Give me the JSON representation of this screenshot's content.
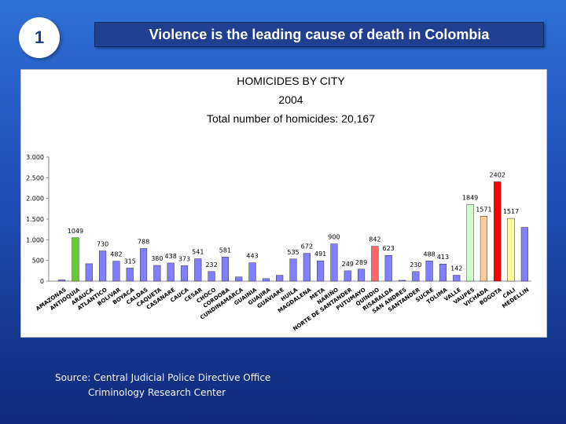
{
  "slide": {
    "number": "1",
    "headline": "Violence is the leading cause of death in Colombia"
  },
  "source": {
    "line1": "Source: Central Judicial Police Directive Office",
    "line2": "Criminology Research Center"
  },
  "colors": {
    "panel_bg": "#ffffff",
    "default_bar": "#8080ff",
    "antioquia_bar": "#33cc33",
    "bogota_bar": "#ff0000"
  },
  "chart_data": {
    "type": "bar",
    "title_lines": [
      "HOMICIDES BY CITY",
      "2004",
      "Total number of homicides: 20,167"
    ],
    "ylim": [
      0,
      3000
    ],
    "yticks": [
      0,
      500,
      1000,
      1500,
      2000,
      2500,
      3000
    ],
    "ytick_labels": [
      "0",
      "500",
      "1.000",
      "1.500",
      "2.000",
      "2.500",
      "3.000"
    ],
    "grid": false,
    "categories": [
      "AMAZONAS",
      "ANTIOQUIA",
      "ARAUCA",
      "ATLANTICO",
      "BOLIVAR",
      "BOYACA",
      "CALDAS",
      "CAQUETA",
      "CASANARE",
      "CAUCA",
      "CESAR",
      "CHOCO",
      "CORDOBA",
      "CUNDINAMARCA",
      "GUAINIA",
      "GUAJIRA",
      "GUAVIARE",
      "HUILA",
      "MAGDALENA",
      "META",
      "NARIÑO",
      "NORTE DE SANTANDER",
      "PUTUMAYO",
      "QUINDIO",
      "RISARALDA",
      "SAN ANDRES",
      "SANTANDER",
      "SUCRE",
      "TOLIMA",
      "VALLE",
      "VAUPES",
      "VICHADA",
      "BOGOTA",
      "CALI",
      "MEDELLIN"
    ],
    "categories_visible": [
      "AMAZONAS",
      "ANTIOQUIA",
      "ARAUCA",
      "ATLANTICO",
      "BOLIVAR",
      "BOYACA",
      "CALDAS",
      "CAQUETA",
      "CASANARE",
      "CAUCA",
      "CESAR",
      "CHOCO",
      "CORDOBA",
      "CUNDINAMARCA",
      "GUAINIA",
      "GUAJIRA",
      "GUAVIARE",
      "HUILA",
      "MAGDALENA",
      "META",
      "NARIÑO",
      "NORTE DE SANTANDER",
      "PUTUMAYO",
      "QUINDIO",
      "RISARALDA",
      "SAN ANDRES",
      "SANTANDER",
      "SUCRE",
      "TOLIMA",
      "VALLE",
      "VAUPES",
      "VICHADA",
      "BOGOTA",
      "CALI",
      "MEDELLIN"
    ],
    "values": [
      30,
      1049,
      420,
      730,
      482,
      315,
      788,
      380,
      438,
      373,
      541,
      232,
      581,
      100,
      443,
      60,
      140,
      535,
      672,
      491,
      900,
      249,
      289,
      842,
      623,
      20,
      230,
      488,
      413,
      142,
      1849,
      1571,
      2402,
      1517,
      1300
    ],
    "labels": [
      "",
      "1049",
      "",
      "730",
      "482",
      "315",
      "788",
      "380",
      "438",
      "373",
      "541",
      "232",
      "581",
      "",
      "443",
      "",
      "",
      "535",
      "672",
      "491",
      "900",
      "249",
      "289",
      "842",
      "623",
      "",
      "230",
      "488",
      "413",
      "142",
      "1849",
      "1571",
      "2402",
      "1517",
      ""
    ],
    "bar_colors": [
      "#8080ff",
      "#66cc33",
      "#8080ff",
      "#8080ff",
      "#8080ff",
      "#8080ff",
      "#8080ff",
      "#8080ff",
      "#8080ff",
      "#8080ff",
      "#8080ff",
      "#8080ff",
      "#8080ff",
      "#8080ff",
      "#8080ff",
      "#8080ff",
      "#8080ff",
      "#8080ff",
      "#8080ff",
      "#8080ff",
      "#8080ff",
      "#8080ff",
      "#8080ff",
      "#ff6666",
      "#8080ff",
      "#8080ff",
      "#8080ff",
      "#8080ff",
      "#8080ff",
      "#8080ff",
      "#ccffcc",
      "#ffcc99",
      "#ff0000",
      "#ffff99",
      "#8080ff"
    ]
  }
}
